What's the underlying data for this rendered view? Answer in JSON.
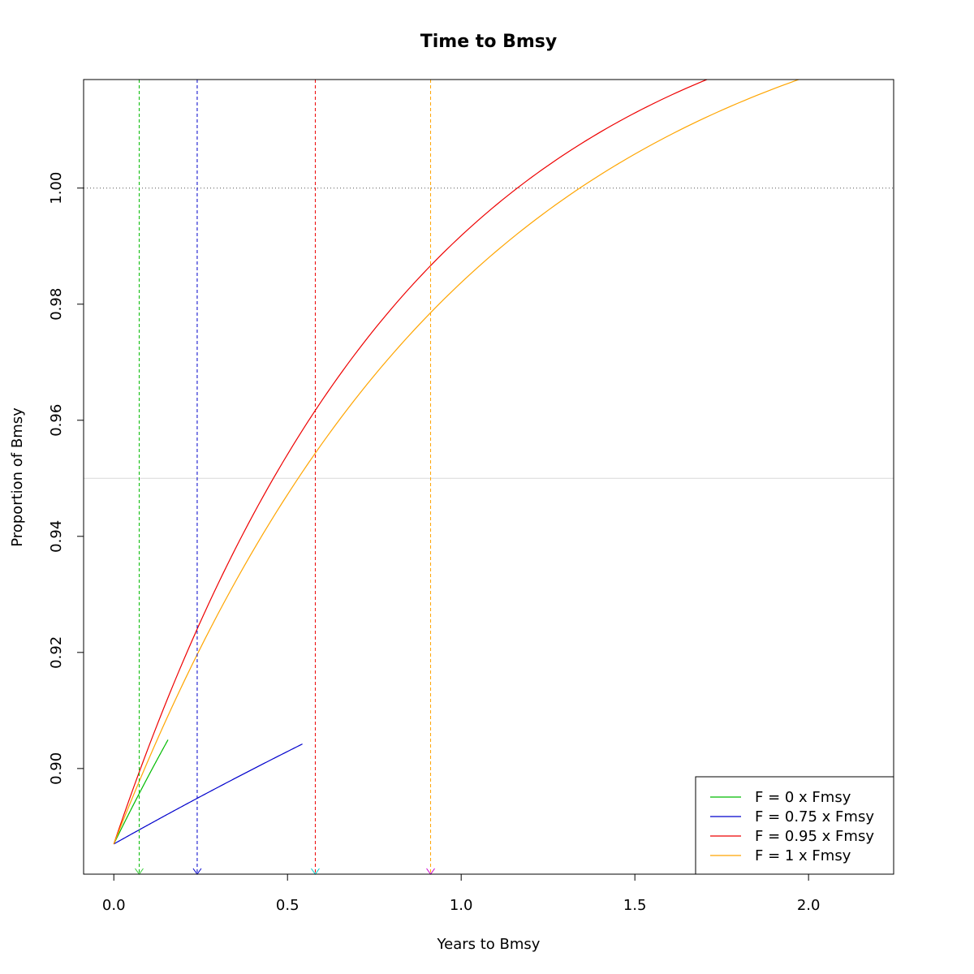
{
  "chart_data": {
    "type": "line",
    "title": "Time to Bmsy",
    "xlabel": "Years to Bmsy",
    "ylabel": "Proportion of Bmsy",
    "xlim": [
      -0.087,
      2.245
    ],
    "ylim": [
      0.8818,
      1.0187
    ],
    "x_ticks": [
      0.0,
      0.5,
      1.0,
      1.5,
      2.0
    ],
    "x_tick_labels": [
      "0.0",
      "0.5",
      "1.0",
      "1.5",
      "2.0"
    ],
    "y_ticks": [
      0.9,
      0.92,
      0.94,
      0.96,
      0.98,
      1.0
    ],
    "y_tick_labels": [
      "0.90",
      "0.92",
      "0.94",
      "0.96",
      "0.98",
      "1.00"
    ],
    "reference_lines": [
      {
        "axis": "y",
        "value": 1.0,
        "style": "dotted",
        "color": "#555555"
      },
      {
        "axis": "y",
        "value": 0.95,
        "style": "solid",
        "color": "#d9d9d9"
      }
    ],
    "series": [
      {
        "name": "F = 0 x Fmsy",
        "color": "#00bb00",
        "start": 0.887,
        "rate": 0.8,
        "x_end": 0.156,
        "marker_x": 0.073,
        "marker_color": "#33cc33"
      },
      {
        "name": "F = 0.75 x Fmsy",
        "color": "#0000cc",
        "start": 0.887,
        "rate": 0.22,
        "x_end": 0.543,
        "marker_x": 0.24,
        "marker_color": "#0000cc"
      },
      {
        "name": "F = 0.95 x Fmsy",
        "color": "#ee0000",
        "start": 0.887,
        "rate": 1.155,
        "x_end": 1.72,
        "marker_x": 0.58,
        "marker_color": "#00cccc"
      },
      {
        "name": "F = 1 x Fmsy",
        "color": "#ffa500",
        "start": 0.887,
        "rate": 1.0,
        "x_end": 2.245,
        "marker_x": 0.912,
        "marker_color": "#cc00cc"
      }
    ],
    "curve_model": "y = 1.04 - (1.04 - start) * exp(-rate * x)",
    "legend_position": "bottom-right",
    "grid": false
  }
}
